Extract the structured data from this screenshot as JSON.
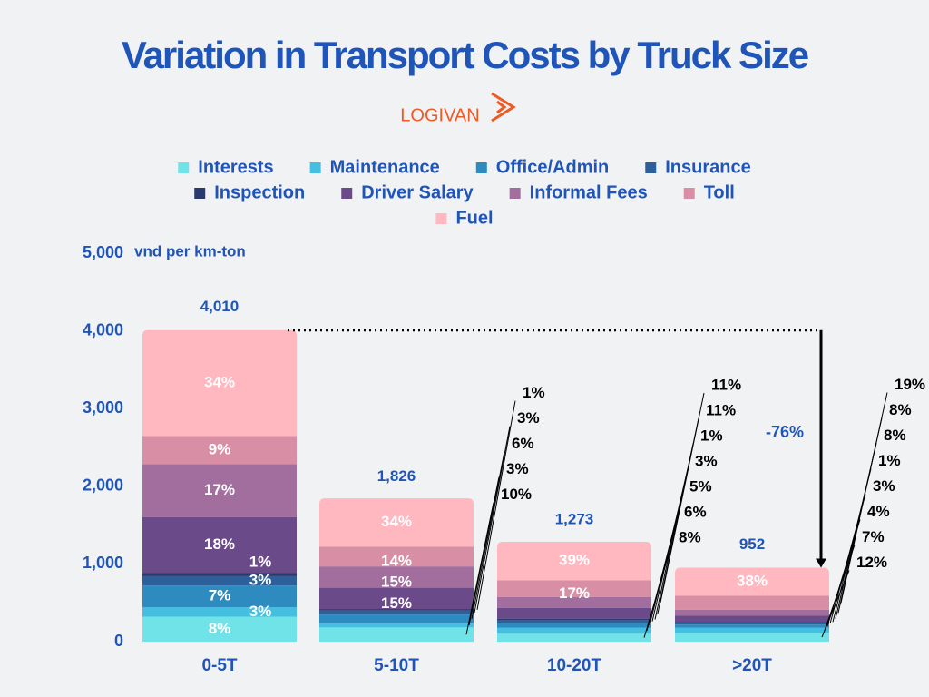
{
  "chart_data": {
    "type": "stacked-bar",
    "title": "Variation in Transport Costs by Truck Size",
    "logo": "LOGIVAN",
    "y_label": "vnd per km-ton",
    "categories": [
      "0-5T",
      "5-10T",
      "10-20T",
      ">20T"
    ],
    "totals": {
      "values": [
        4010,
        1826,
        1273,
        952
      ],
      "value_labels": [
        "4,010",
        "1,826",
        "1,273",
        "952"
      ]
    },
    "annotation": "-76%",
    "ylim": [
      0,
      5000
    ],
    "yticks": [
      0,
      {
        "value": 1000,
        "label": "1,000"
      },
      {
        "value": 2000,
        "label": "2,000"
      },
      {
        "value": 3000,
        "label": "3,000"
      },
      {
        "value": 4000,
        "label": "4,000"
      },
      {
        "value": 5000,
        "label": "5,000"
      }
    ],
    "series": [
      {
        "name": "Interests",
        "color": "#6fe3e8",
        "values": [
          8,
          10,
          8,
          12
        ],
        "value_labels": [
          "8%",
          "10%",
          "8%",
          "12%"
        ]
      },
      {
        "name": "Maintenance",
        "color": "#45bfe0",
        "values": [
          3,
          3,
          6,
          7
        ],
        "value_labels": [
          "3%",
          "3%",
          "6%",
          "7%"
        ]
      },
      {
        "name": "Office/Admin",
        "color": "#2e8bbf",
        "values": [
          7,
          6,
          5,
          4
        ],
        "value_labels": [
          "7%",
          "6%",
          "5%",
          "4%"
        ]
      },
      {
        "name": "Insurance",
        "color": "#2d5f9a",
        "values": [
          3,
          3,
          3,
          3
        ],
        "value_labels": [
          "3%",
          "3%",
          "3%",
          "3%"
        ]
      },
      {
        "name": "Inspection",
        "color": "#2b3a6e",
        "values": [
          1,
          1,
          1,
          1
        ],
        "value_labels": [
          "1%",
          "1%",
          "1%",
          "1%"
        ]
      },
      {
        "name": "Driver Salary",
        "color": "#6b4a8a",
        "values": [
          18,
          15,
          11,
          8
        ],
        "value_labels": [
          "18%",
          "15%",
          "11%",
          "8%"
        ]
      },
      {
        "name": "Informal Fees",
        "color": "#a26e9e",
        "values": [
          17,
          15,
          11,
          8
        ],
        "value_labels": [
          "17%",
          "15%",
          "11%",
          "8%"
        ]
      },
      {
        "name": "Toll",
        "color": "#d88ea5",
        "values": [
          9,
          14,
          17,
          19
        ],
        "value_labels": [
          "9%",
          "14%",
          "17%",
          "19%"
        ]
      },
      {
        "name": "Fuel",
        "color": "#ffb8c0",
        "values": [
          34,
          34,
          39,
          38
        ],
        "value_labels": [
          "34%",
          "34%",
          "39%",
          "38%"
        ]
      }
    ]
  }
}
